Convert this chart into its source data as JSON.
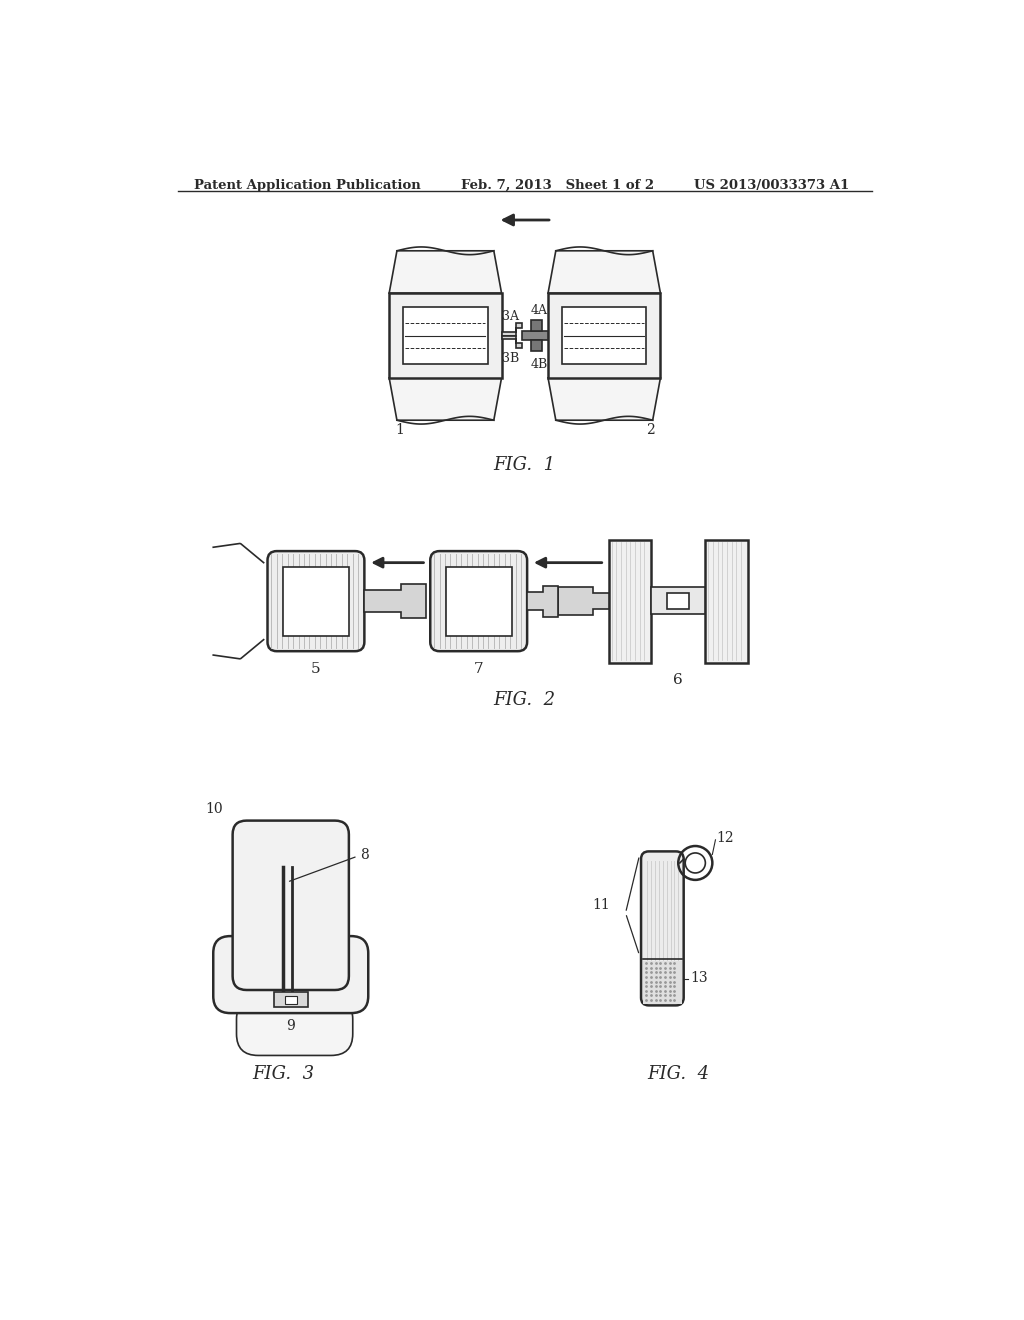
{
  "header_left": "Patent Application Publication",
  "header_mid": "Feb. 7, 2013   Sheet 1 of 2",
  "header_right": "US 2013/0033373 A1",
  "fig1_label": "FIG.  1",
  "fig2_label": "FIG.  2",
  "fig3_label": "FIG.  3",
  "fig4_label": "FIG.  4",
  "bg_color": "#ffffff",
  "line_color": "#2a2a2a"
}
